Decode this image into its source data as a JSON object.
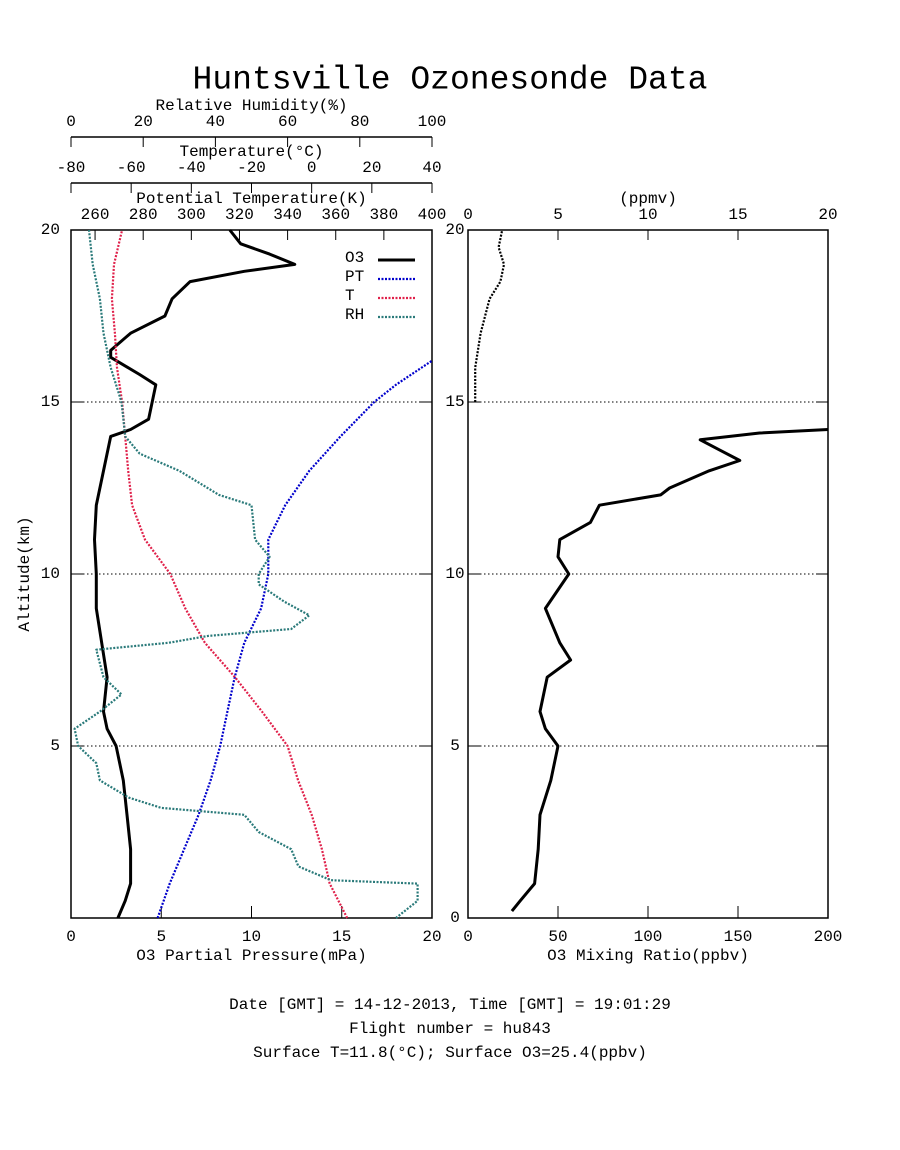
{
  "title": "Huntsville Ozonesonde Data",
  "footer": [
    "Date [GMT] = 14-12-2013,  Time [GMT] = 19:01:29",
    "Flight number = hu843",
    "Surface T=11.8(°C); Surface O3=25.4(ppbv)"
  ],
  "chart_data": [
    {
      "type": "line",
      "ylabel": "Altitude(km)",
      "ylim": [
        0,
        20
      ],
      "yticks": [
        5,
        10,
        15,
        20
      ],
      "grid": true,
      "legend": "upper right",
      "xlabel": "O3 Partial Pressure(mPa)",
      "xlim": [
        0,
        20
      ],
      "xticks": [
        0,
        5,
        10,
        15,
        20
      ],
      "x2label": "Relative Humidity(%)",
      "x2lim": [
        0,
        100
      ],
      "x2ticks": [
        0,
        20,
        40,
        60,
        80,
        100
      ],
      "x3label": "Temperature(°C)",
      "x3lim": [
        -80,
        40
      ],
      "x3ticks": [
        -80,
        -60,
        -40,
        -20,
        0,
        20,
        40
      ],
      "x4label": "Potential Temperature(K)",
      "x4lim": [
        250,
        400
      ],
      "x4ticks": [
        260,
        280,
        300,
        320,
        340,
        360,
        380,
        400
      ],
      "series": [
        {
          "name": "O3",
          "color": "#000000",
          "axis": "x",
          "style": "solid",
          "y": [
            0,
            0.5,
            1,
            2,
            3,
            4,
            5,
            5.5,
            6,
            7,
            8,
            9,
            10,
            11,
            12,
            13,
            14,
            14.2,
            14.5,
            15,
            15.5,
            15.8,
            16.3,
            16.5,
            17,
            17.5,
            18,
            18.5,
            18.8,
            19,
            19.3,
            19.6,
            20
          ],
          "values": [
            2.6,
            3.0,
            3.3,
            3.3,
            3.1,
            2.9,
            2.5,
            2.0,
            1.8,
            2.0,
            1.7,
            1.4,
            1.4,
            1.3,
            1.4,
            1.8,
            2.2,
            3.3,
            4.3,
            4.5,
            4.7,
            3.8,
            2.2,
            2.2,
            3.3,
            5.2,
            5.6,
            6.6,
            9.6,
            12.4,
            11.0,
            9.4,
            8.8
          ]
        },
        {
          "name": "PT",
          "color": "#0000cc",
          "axis": "x4",
          "style": "dotted",
          "y": [
            0,
            1,
            2,
            3,
            4,
            5,
            6,
            7,
            8,
            9,
            10,
            11,
            12,
            13,
            14,
            15,
            15.5,
            16.2
          ],
          "values": [
            286,
            291,
            297,
            303,
            308,
            312,
            315,
            318,
            322,
            329,
            332,
            332,
            339,
            349,
            362,
            376,
            385,
            400
          ]
        },
        {
          "name": "T",
          "color": "#e0204a",
          "axis": "x3",
          "style": "dotted",
          "y": [
            0,
            1,
            2,
            3,
            4,
            5,
            6,
            7,
            8,
            9,
            10,
            11,
            12,
            13,
            14,
            15,
            16,
            17,
            18,
            19,
            20
          ],
          "values": [
            11.8,
            6,
            3.4,
            0,
            -4.5,
            -8,
            -16.5,
            -25.5,
            -35.5,
            -42,
            -47,
            -55.4,
            -59.7,
            -61,
            -62,
            -63,
            -64.7,
            -65.4,
            -66.4,
            -65.7,
            -63
          ]
        },
        {
          "name": "RH",
          "color": "#2a7a7a",
          "axis": "x2",
          "style": "dotted",
          "y": [
            0,
            0.5,
            1,
            1.1,
            1.5,
            2,
            2.5,
            3,
            3.2,
            3.5,
            4,
            4.5,
            5,
            5.5,
            6,
            6.5,
            7,
            7.8,
            8,
            8.2,
            8.4,
            8.8,
            9.2,
            9.7,
            10,
            10.5,
            11,
            12,
            12.3,
            13,
            13.5,
            14,
            15,
            16,
            17,
            18,
            19,
            20
          ],
          "values": [
            90,
            96,
            96,
            72,
            63,
            61,
            52,
            48,
            25,
            16,
            8,
            7,
            2,
            1,
            8,
            14,
            9,
            7,
            27,
            38,
            61,
            66,
            59,
            52,
            52,
            55,
            51,
            50,
            41,
            30,
            19,
            15,
            14,
            11,
            9,
            8,
            6,
            5
          ]
        }
      ]
    },
    {
      "type": "line",
      "ylim": [
        0,
        20
      ],
      "yticks": [
        0,
        5,
        10,
        15,
        20
      ],
      "grid": true,
      "xlabel": "O3 Mixing Ratio(ppbv)",
      "xlim": [
        0,
        200
      ],
      "xticks": [
        0,
        50,
        100,
        150,
        200
      ],
      "x2label": "(ppmv)",
      "x2lim": [
        0,
        20
      ],
      "x2ticks": [
        0,
        5,
        10,
        15,
        20
      ],
      "series": [
        {
          "color": "#000000",
          "axis": "x",
          "style": "solid",
          "y": [
            0.2,
            0.5,
            1,
            2,
            3,
            4,
            4.5,
            5,
            5.5,
            6,
            7,
            7.5,
            8,
            9,
            10,
            10.5,
            11,
            11.5,
            12,
            12.3,
            12.5,
            13,
            13.3,
            13.6,
            13.9,
            14.1,
            14.2
          ],
          "values": [
            24.4,
            29,
            37,
            39,
            40,
            46,
            48,
            50,
            43,
            40,
            44,
            57,
            51,
            43,
            56,
            50,
            51,
            68,
            73,
            107,
            112,
            134,
            151,
            140,
            129,
            162,
            200
          ]
        },
        {
          "color": "#000000",
          "axis": "x2",
          "style": "dotted",
          "y": [
            15,
            16,
            17,
            18,
            18.5,
            19,
            19.5,
            20
          ],
          "values": [
            0.4,
            0.4,
            0.7,
            1.2,
            1.8,
            2.0,
            1.7,
            1.9
          ]
        }
      ]
    }
  ]
}
